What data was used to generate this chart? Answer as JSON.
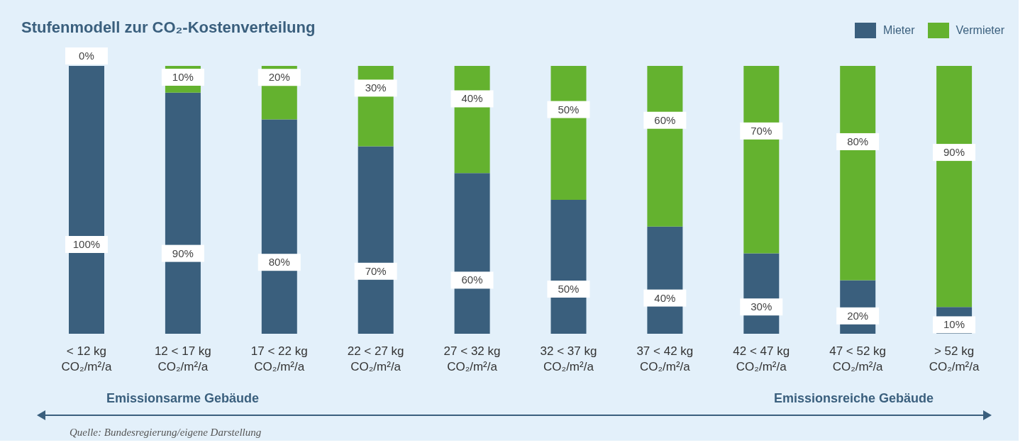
{
  "chart_data": {
    "type": "bar",
    "title": "Stufenmodell zur CO₂-Kostenverteilung",
    "stacked": true,
    "legend": "top right",
    "categories": [
      "< 12 kg\nCO₂/m²/a",
      "12 < 17 kg\nCO₂/m²/a",
      "17 < 22 kg\nCO₂/m²/a",
      "22 < 27 kg\nCO₂/m²/a",
      "27 < 32 kg\nCO₂/m²/a",
      "32 < 37 kg\nCO₂/m²/a",
      "37 < 42 kg\nCO₂/m²/a",
      "42 < 47 kg\nCO₂/m²/a",
      "47 < 52 kg\nCO₂/m²/a",
      "> 52 kg\nCO₂/m²/a"
    ],
    "series": [
      {
        "name": "Mieter",
        "color": "#3a5f7d",
        "values": [
          100,
          90,
          80,
          70,
          60,
          50,
          40,
          30,
          20,
          10
        ],
        "value_labels": [
          "100%",
          "90%",
          "80%",
          "70%",
          "60%",
          "50%",
          "40%",
          "30%",
          "20%",
          "10%"
        ]
      },
      {
        "name": "Vermieter",
        "color": "#64b22f",
        "values": [
          0,
          10,
          20,
          30,
          40,
          50,
          60,
          70,
          80,
          90
        ],
        "value_labels": [
          "0%",
          "10%",
          "20%",
          "30%",
          "40%",
          "50%",
          "60%",
          "70%",
          "80%",
          "90%"
        ]
      }
    ],
    "annotations": [
      "Emissionsarme Gebäude",
      "Emissionsreiche Gebäude",
      "Quelle: Bundesregierung/eigene Darstellung"
    ]
  }
}
